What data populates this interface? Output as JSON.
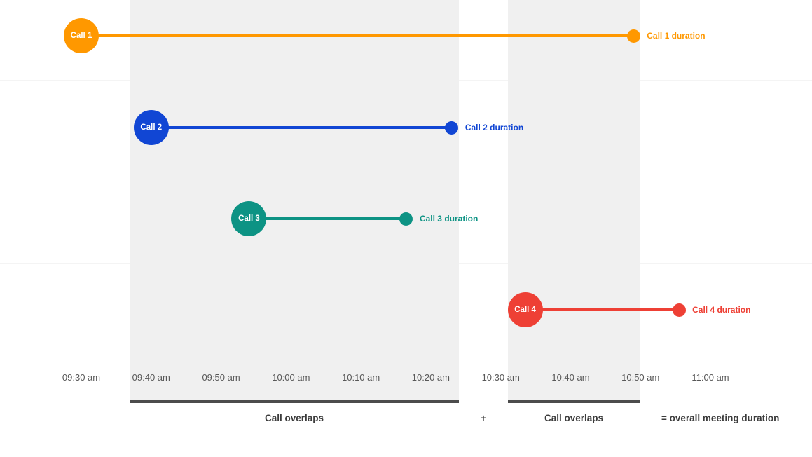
{
  "chart_data": {
    "type": "bar",
    "subtype": "horizontal-timeline",
    "x_ticks": [
      "09:30 am",
      "09:40 am",
      "09:50 am",
      "10:00 am",
      "10:10 am",
      "10:20 am",
      "10:30 am",
      "10:40 am",
      "10:50 am",
      "11:00 am"
    ],
    "x_range_minutes": [
      0,
      90
    ],
    "tick_interval_minutes": 10,
    "grid": "faint horizontal row separators, no vertical gridlines",
    "legend_position": "none",
    "series": [
      {
        "name": "Call 1",
        "duration_label": "Call 1 duration",
        "color": "#ff9800",
        "start_min": 0,
        "end_min": 79,
        "start_time": "09:30 am",
        "end_time": "10:49 am"
      },
      {
        "name": "Call 2",
        "duration_label": "Call 2 duration",
        "color": "#1146d4",
        "start_min": 10,
        "end_min": 53,
        "start_time": "09:40 am",
        "end_time": "10:23 am"
      },
      {
        "name": "Call 3",
        "duration_label": "Call 3 duration",
        "color": "#0d9384",
        "start_min": 24,
        "end_min": 46.5,
        "start_time": "09:54 am",
        "end_time": "10:17 am"
      },
      {
        "name": "Call 4",
        "duration_label": "Call 4 duration",
        "color": "#ee4035",
        "start_min": 63.5,
        "end_min": 85.5,
        "start_time": "10:34 am",
        "end_time": "10:56 am"
      }
    ],
    "overlap_regions": [
      {
        "label": "Call overlaps",
        "start_min": 7,
        "end_min": 54
      },
      {
        "label": "Call overlaps",
        "start_min": 61,
        "end_min": 80
      }
    ]
  },
  "footer": {
    "overlap1_label": "Call overlaps",
    "plus_sign": "+",
    "overlap2_label": "Call overlaps",
    "equals_label": "= overall meeting duration"
  },
  "colors": {
    "background": "#ffffff",
    "overlap_region": "#f0f0f0",
    "overlap_underline_bar": "#4c4c4c",
    "gridline": "#f4f4f4",
    "axis_text": "#585858",
    "footer_text": "#3c3c3c",
    "call1": "#ff9800",
    "call2": "#1146d4",
    "call3": "#0d9384",
    "call4": "#ee4035"
  }
}
